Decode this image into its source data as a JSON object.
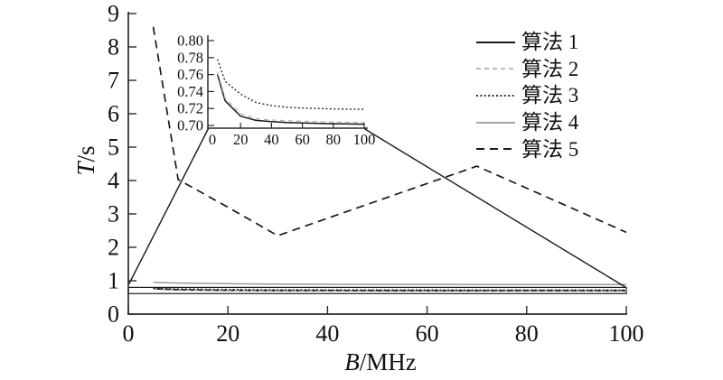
{
  "figure": {
    "background": "#ffffff",
    "axis_color": "#2a2a2a",
    "text_color": "#111111"
  },
  "chart_data": {
    "type": "line",
    "title": "",
    "xlabel_var": "B",
    "xlabel_unit": "/MHz",
    "ylabel_var": "T",
    "ylabel_unit": "/s",
    "xlim": [
      0,
      100
    ],
    "ylim": [
      0,
      9
    ],
    "xticks": [
      0,
      20,
      40,
      60,
      80,
      100
    ],
    "yticks": [
      0,
      1,
      2,
      3,
      4,
      5,
      6,
      7,
      8,
      9
    ],
    "grid": false,
    "legend_position": "top-right",
    "series": [
      {
        "name": "算法 1",
        "line": "solid",
        "color": "#1a1a1a",
        "width": 1.7,
        "dash": "",
        "points": [
          [
            5,
            0.76
          ],
          [
            10,
            0.729
          ],
          [
            20,
            0.711
          ],
          [
            30,
            0.706
          ],
          [
            40,
            0.7045
          ],
          [
            50,
            0.7035
          ],
          [
            60,
            0.703
          ],
          [
            80,
            0.702
          ],
          [
            100,
            0.7015
          ]
        ]
      },
      {
        "name": "算法 2",
        "line": "dashed",
        "color": "#b0b0b0",
        "width": 1.4,
        "dash": "5 4",
        "points": [
          [
            5,
            0.763
          ],
          [
            10,
            0.732
          ],
          [
            20,
            0.714
          ],
          [
            30,
            0.708
          ],
          [
            40,
            0.7065
          ],
          [
            50,
            0.7055
          ],
          [
            60,
            0.705
          ],
          [
            80,
            0.704
          ],
          [
            100,
            0.7035
          ]
        ]
      },
      {
        "name": "算法 3",
        "line": "dotted",
        "color": "#1a1a1a",
        "width": 1.5,
        "dash": "2 2.4",
        "points": [
          [
            5,
            0.778
          ],
          [
            10,
            0.752
          ],
          [
            20,
            0.737
          ],
          [
            30,
            0.727
          ],
          [
            40,
            0.7235
          ],
          [
            50,
            0.7215
          ],
          [
            60,
            0.7205
          ],
          [
            80,
            0.7195
          ],
          [
            100,
            0.719
          ]
        ]
      },
      {
        "name": "算法 4",
        "line": "solid",
        "color": "#9a9a9a",
        "width": 1.5,
        "dash": "",
        "points": [
          [
            5,
            0.95
          ],
          [
            10,
            0.93
          ],
          [
            20,
            0.91
          ],
          [
            30,
            0.9
          ],
          [
            50,
            0.89
          ],
          [
            70,
            0.886
          ],
          [
            100,
            0.883
          ]
        ]
      },
      {
        "name": "算法 5",
        "line": "dashed",
        "color": "#1a1a1a",
        "width": 1.7,
        "dash": "9 6",
        "points": [
          [
            5,
            8.6
          ],
          [
            10,
            4.03
          ],
          [
            20,
            3.2
          ],
          [
            30,
            2.35
          ],
          [
            40,
            2.87
          ],
          [
            50,
            3.39
          ],
          [
            60,
            3.91
          ],
          [
            70,
            4.43
          ],
          [
            80,
            3.77
          ],
          [
            90,
            3.11
          ],
          [
            100,
            2.45
          ]
        ]
      }
    ],
    "inset": {
      "xlim": [
        0,
        100
      ],
      "ylim": [
        0.7,
        0.8
      ],
      "xticks": [
        0,
        20,
        40,
        60,
        80,
        100
      ],
      "xticklabels": [
        "0",
        "20",
        "40",
        "60",
        "80",
        "100"
      ],
      "yticks": [
        0.7,
        0.72,
        0.74,
        0.76,
        0.78,
        0.8
      ],
      "yticklabels": [
        "0.70",
        "0.72",
        "0.74",
        "0.76",
        "0.78",
        "0.80"
      ],
      "series_shown": [
        0,
        1,
        2
      ]
    },
    "zoom_region": {
      "x": [
        0,
        100
      ],
      "y_top": 0.8,
      "y_bottom": 0.615
    }
  }
}
